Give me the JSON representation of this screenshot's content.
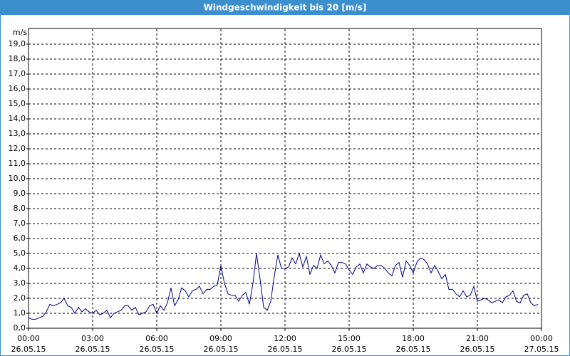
{
  "chart_data": {
    "type": "line",
    "title": "Windgeschwindigkeit bis 20 [m/s]",
    "y_label": "m/s",
    "grid": true,
    "xlim": [
      0,
      1440
    ],
    "xticks": [
      {
        "value": 0,
        "label": "00:00",
        "date": "26.05.15"
      },
      {
        "value": 180,
        "label": "03:00",
        "date": "26.05.15"
      },
      {
        "value": 360,
        "label": "06:00",
        "date": "26.05.15"
      },
      {
        "value": 540,
        "label": "09:00",
        "date": "26.05.15"
      },
      {
        "value": 720,
        "label": "12:00",
        "date": "26.05.15"
      },
      {
        "value": 900,
        "label": "15:00",
        "date": "26.05.15"
      },
      {
        "value": 1080,
        "label": "18:00",
        "date": "26.05.15"
      },
      {
        "value": 1260,
        "label": "21:00",
        "date": "26.05.15"
      },
      {
        "value": 1440,
        "label": "00:00",
        "date": "27.05.15"
      }
    ],
    "ylim": [
      0,
      20
    ],
    "yticks": [
      {
        "value": 0,
        "label": "0,0"
      },
      {
        "value": 1,
        "label": "1,0"
      },
      {
        "value": 2,
        "label": "2,0"
      },
      {
        "value": 3,
        "label": "3,0"
      },
      {
        "value": 4,
        "label": "4,0"
      },
      {
        "value": 5,
        "label": "5,0"
      },
      {
        "value": 6,
        "label": "6,0"
      },
      {
        "value": 7,
        "label": "7,0"
      },
      {
        "value": 8,
        "label": "8,0"
      },
      {
        "value": 9,
        "label": "9,0"
      },
      {
        "value": 10,
        "label": "10,0"
      },
      {
        "value": 11,
        "label": "11,0"
      },
      {
        "value": 12,
        "label": "12,0"
      },
      {
        "value": 13,
        "label": "13,0"
      },
      {
        "value": 14,
        "label": "14,0"
      },
      {
        "value": 15,
        "label": "15,0"
      },
      {
        "value": 16,
        "label": "16,0"
      },
      {
        "value": 17,
        "label": "17,0"
      },
      {
        "value": 18,
        "label": "18,0"
      },
      {
        "value": 19,
        "label": "19,0"
      }
    ],
    "x": [
      0,
      10,
      20,
      30,
      40,
      50,
      60,
      70,
      80,
      90,
      100,
      110,
      120,
      130,
      140,
      150,
      160,
      170,
      180,
      190,
      200,
      210,
      220,
      230,
      240,
      250,
      260,
      270,
      280,
      290,
      300,
      310,
      320,
      330,
      340,
      350,
      360,
      370,
      380,
      390,
      400,
      410,
      420,
      430,
      440,
      450,
      460,
      470,
      480,
      490,
      500,
      510,
      520,
      530,
      540,
      550,
      560,
      570,
      580,
      590,
      600,
      610,
      620,
      630,
      640,
      650,
      660,
      670,
      680,
      690,
      700,
      710,
      720,
      730,
      740,
      750,
      760,
      770,
      780,
      790,
      800,
      810,
      820,
      830,
      840,
      850,
      860,
      870,
      880,
      890,
      900,
      910,
      920,
      930,
      940,
      950,
      960,
      970,
      980,
      990,
      1000,
      1010,
      1020,
      1030,
      1040,
      1050,
      1060,
      1070,
      1080,
      1090,
      1100,
      1110,
      1120,
      1130,
      1140,
      1150,
      1160,
      1170,
      1180,
      1190,
      1200,
      1210,
      1220,
      1230,
      1240,
      1250,
      1260,
      1270,
      1280,
      1290,
      1300,
      1310,
      1320,
      1330,
      1340,
      1350,
      1360,
      1370,
      1380,
      1390,
      1400,
      1410,
      1420,
      1430
    ],
    "series": [
      {
        "color": "#00008b",
        "values": [
          0.7,
          0.6,
          0.6,
          0.7,
          0.8,
          1.1,
          1.6,
          1.5,
          1.6,
          1.7,
          2.0,
          1.5,
          1.4,
          1.0,
          1.4,
          1.1,
          1.3,
          1.1,
          1.0,
          1.2,
          0.9,
          1.0,
          1.2,
          0.7,
          1.0,
          1.1,
          1.2,
          1.5,
          1.5,
          1.2,
          1.4,
          0.9,
          1.0,
          1.1,
          1.5,
          1.6,
          1.0,
          1.5,
          1.2,
          1.7,
          2.7,
          1.5,
          1.9,
          2.7,
          2.5,
          2.1,
          2.5,
          2.6,
          2.8,
          2.3,
          2.6,
          2.6,
          2.8,
          2.9,
          4.2,
          3.0,
          2.3,
          2.2,
          2.2,
          1.8,
          2.2,
          2.4,
          1.6,
          3.0,
          5.0,
          3.3,
          1.4,
          1.2,
          1.8,
          3.5,
          4.9,
          4.0,
          4.0,
          4.1,
          4.7,
          4.3,
          5.0,
          4.1,
          4.8,
          3.6,
          4.2,
          4.0,
          4.9,
          4.3,
          4.5,
          4.2,
          3.7,
          4.4,
          4.4,
          4.3,
          3.9,
          3.6,
          4.1,
          4.3,
          3.7,
          4.3,
          4.1,
          4.0,
          4.2,
          4.2,
          4.0,
          3.7,
          3.5,
          4.2,
          4.4,
          3.4,
          4.5,
          4.2,
          3.7,
          4.4,
          4.7,
          4.6,
          4.3,
          3.7,
          4.2,
          3.8,
          3.3,
          3.6,
          2.6,
          2.6,
          2.3,
          2.1,
          2.5,
          2.1,
          2.2,
          2.8,
          1.8,
          1.9,
          2.0,
          1.9,
          1.7,
          1.8,
          1.9,
          1.7,
          2.1,
          2.2,
          2.5,
          1.8,
          1.7,
          2.2,
          2.3,
          1.7,
          1.5,
          1.6
        ]
      }
    ]
  }
}
